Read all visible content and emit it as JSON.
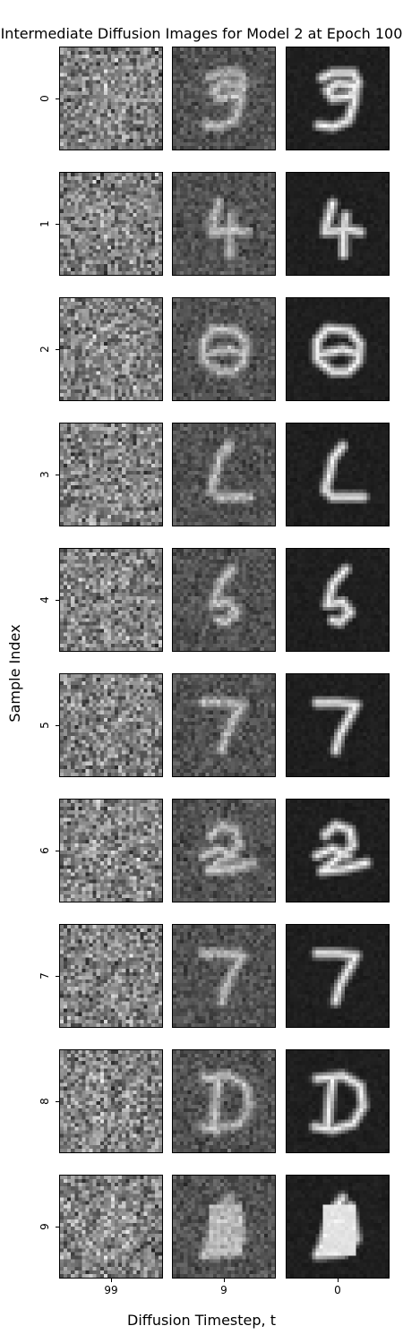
{
  "chart_data": {
    "type": "image-grid",
    "title": "Intermediate Diffusion Images for Model 2 at Epoch 100",
    "xlabel": "Diffusion Timestep, t",
    "ylabel": "Sample Index",
    "columns": [
      "99",
      "9",
      "0"
    ],
    "rows": [
      "0",
      "1",
      "2",
      "3",
      "4",
      "5",
      "6",
      "7",
      "8",
      "9"
    ],
    "image_resolution": 28,
    "colormap": "gray",
    "row_digits": [
      "9",
      "4",
      "8",
      "L",
      "5",
      "7",
      "2",
      "7",
      "D",
      "blob"
    ]
  }
}
